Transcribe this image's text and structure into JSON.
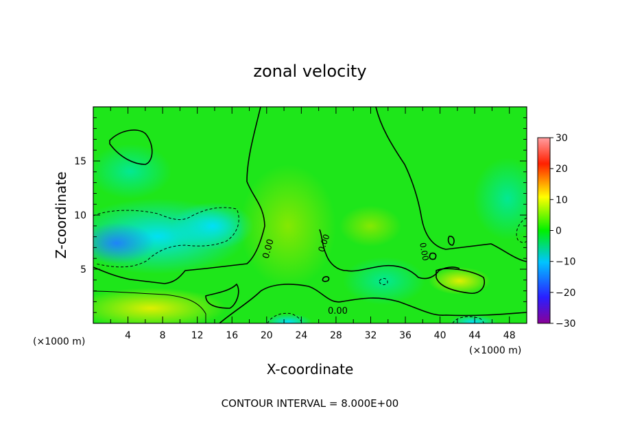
{
  "chart_data": {
    "type": "heatmap",
    "title": "zonal velocity",
    "xlabel": "X-coordinate",
    "ylabel": "Z-coordinate",
    "x_unit_left": "(×1000 m)",
    "x_unit_right": "(×1000 m)",
    "footer": "CONTOUR INTERVAL = 8.000E+00",
    "xlim": [
      0,
      50
    ],
    "ylim": [
      0,
      20
    ],
    "x_ticks": [
      4,
      8,
      12,
      16,
      20,
      24,
      28,
      32,
      36,
      40,
      44,
      48
    ],
    "y_ticks": [
      5,
      10,
      15
    ],
    "contour_labels": [
      "0.00",
      "0.00",
      "0.00",
      "0.00"
    ],
    "colorbar": {
      "range": [
        -30,
        30
      ],
      "ticks": [
        30,
        20,
        10,
        0,
        -10,
        -20,
        -30
      ],
      "colors": [
        "#8a0097",
        "#2a1fff",
        "#00c4ff",
        "#00f000",
        "#ffff00",
        "#ff2000",
        "#ff9da0"
      ]
    }
  }
}
